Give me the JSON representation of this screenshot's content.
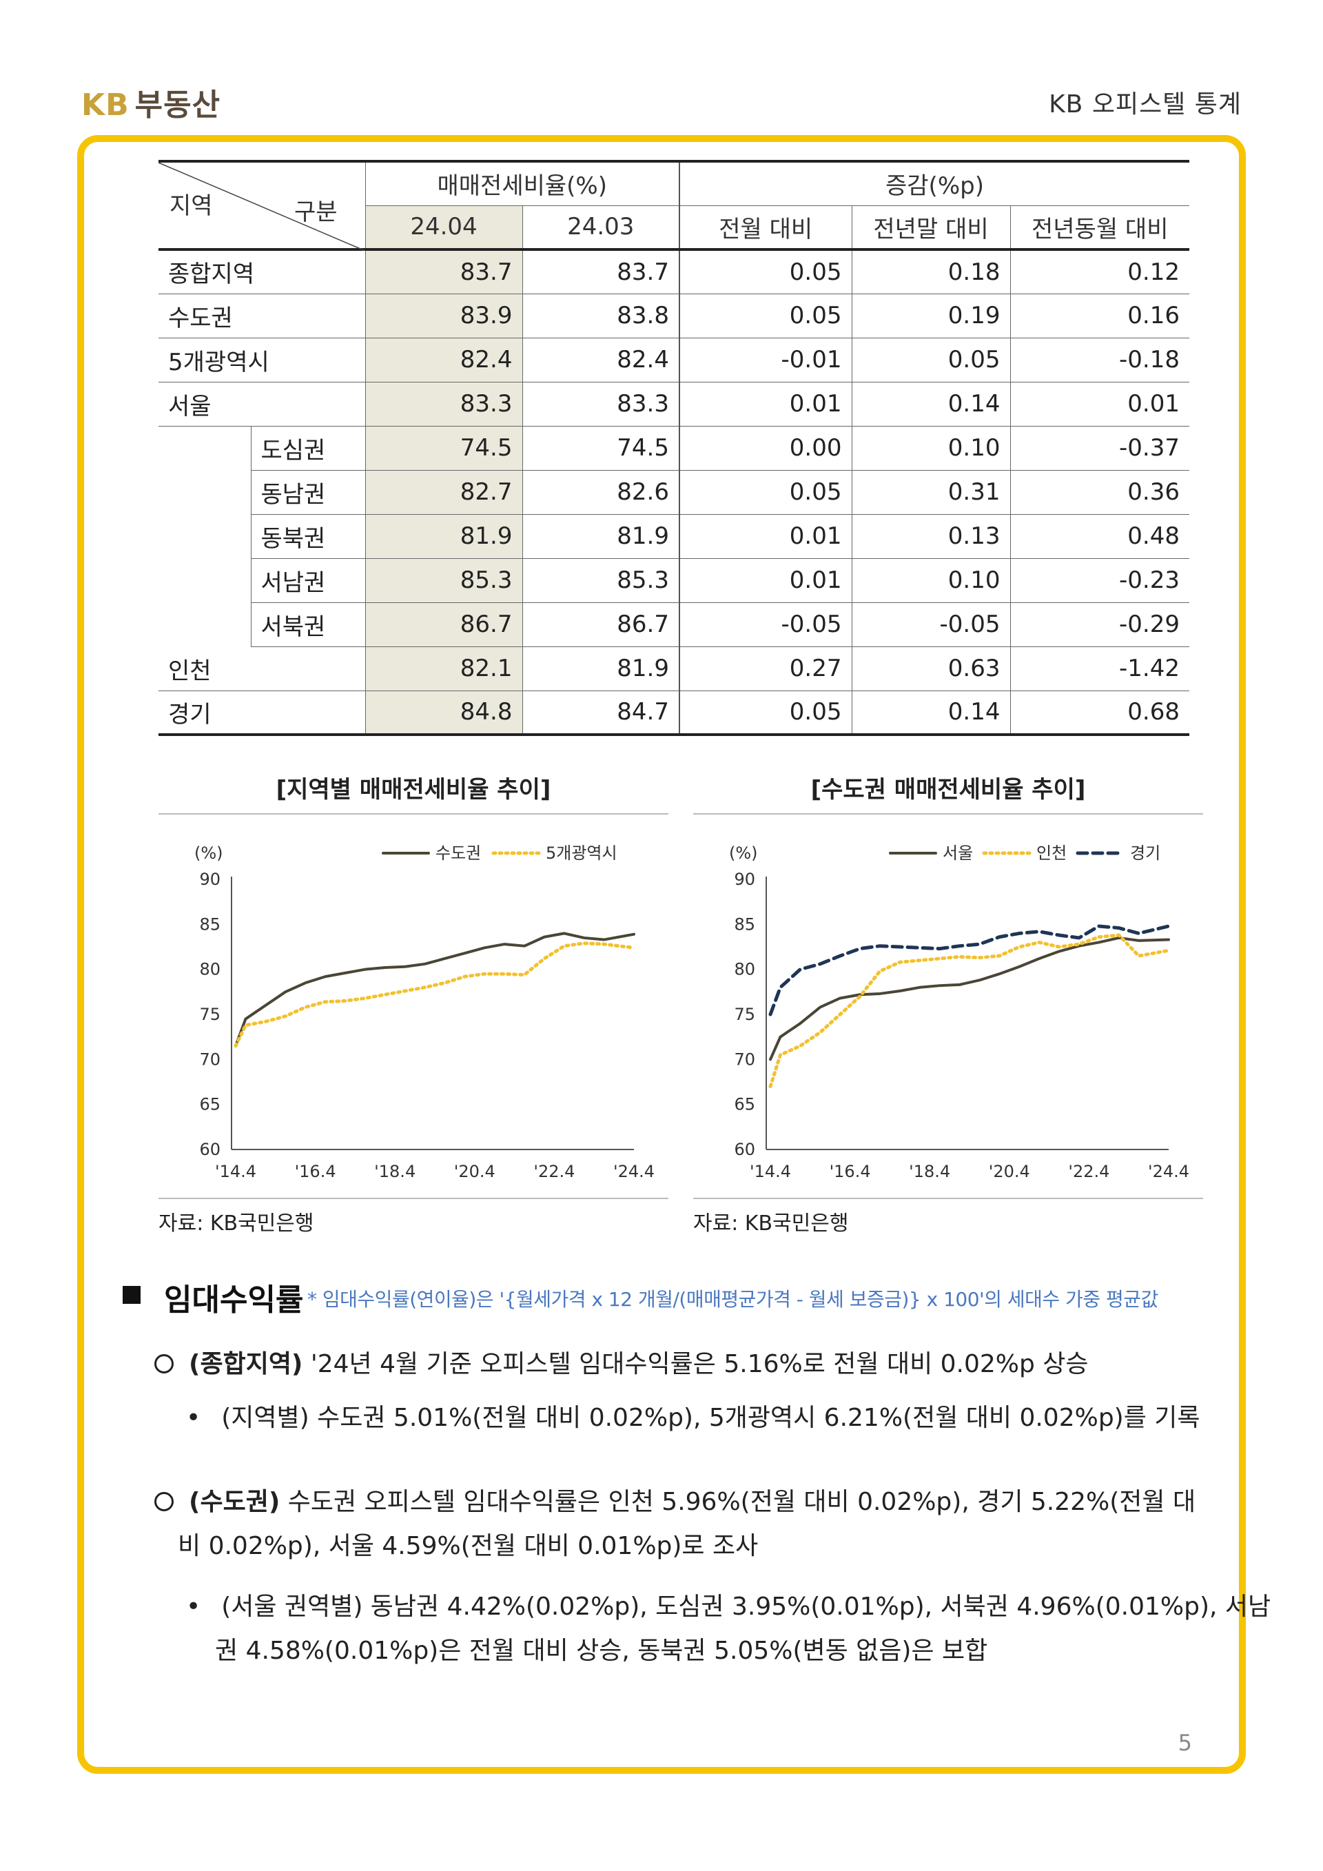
{
  "header": {
    "logo_kb": "KB",
    "logo_rest": "부동산",
    "title": "KB 오피스텔 통계"
  },
  "table": {
    "corner_left": "지역",
    "corner_right": "구분",
    "group1": "매매전세비율(%)",
    "group2": "증감(%p)",
    "subheads": [
      "24.04",
      "24.03",
      "전월 대비",
      "전년말 대비",
      "전년동월 대비"
    ],
    "rows": [
      {
        "region": "종합지역",
        "sub": "",
        "v": [
          "83.7",
          "83.7",
          "0.05",
          "0.18",
          "0.12"
        ]
      },
      {
        "region": "수도권",
        "sub": "",
        "v": [
          "83.9",
          "83.8",
          "0.05",
          "0.19",
          "0.16"
        ]
      },
      {
        "region": "5개광역시",
        "sub": "",
        "v": [
          "82.4",
          "82.4",
          "-0.01",
          "0.05",
          "-0.18"
        ]
      },
      {
        "region": "서울",
        "sub": "",
        "v": [
          "83.3",
          "83.3",
          "0.01",
          "0.14",
          "0.01"
        ]
      },
      {
        "region": "",
        "sub": "도심권",
        "v": [
          "74.5",
          "74.5",
          "0.00",
          "0.10",
          "-0.37"
        ]
      },
      {
        "region": "",
        "sub": "동남권",
        "v": [
          "82.7",
          "82.6",
          "0.05",
          "0.31",
          "0.36"
        ]
      },
      {
        "region": "",
        "sub": "동북권",
        "v": [
          "81.9",
          "81.9",
          "0.01",
          "0.13",
          "0.48"
        ]
      },
      {
        "region": "",
        "sub": "서남권",
        "v": [
          "85.3",
          "85.3",
          "0.01",
          "0.10",
          "-0.23"
        ]
      },
      {
        "region": "",
        "sub": "서북권",
        "v": [
          "86.7",
          "86.7",
          "-0.05",
          "-0.05",
          "-0.29"
        ]
      },
      {
        "region": "인천",
        "sub": "",
        "v": [
          "82.1",
          "81.9",
          "0.27",
          "0.63",
          "-1.42"
        ]
      },
      {
        "region": "경기",
        "sub": "",
        "v": [
          "84.8",
          "84.7",
          "0.05",
          "0.14",
          "0.68"
        ]
      }
    ]
  },
  "chart_data": [
    {
      "type": "line",
      "title": "[지역별 매매전세비율 추이]",
      "ylabel": "(%)",
      "ylim": [
        60,
        90
      ],
      "yticks": [
        "90",
        "85",
        "80",
        "75",
        "70",
        "65",
        "60"
      ],
      "xticks": [
        "'14.4",
        "'16.4",
        "'18.4",
        "'20.4",
        "'22.4",
        "'24.4"
      ],
      "x": [
        2014.25,
        2014.5,
        2015.0,
        2015.5,
        2016.0,
        2016.5,
        2017.0,
        2017.5,
        2018.0,
        2018.5,
        2019.0,
        2019.5,
        2020.0,
        2020.5,
        2021.0,
        2021.5,
        2022.0,
        2022.5,
        2023.0,
        2023.5,
        2024.25
      ],
      "series": [
        {
          "name": "수도권",
          "color": "#4a4636",
          "dash": "solid",
          "values": [
            71.5,
            74.5,
            76.0,
            77.5,
            78.5,
            79.2,
            79.6,
            80.0,
            80.2,
            80.3,
            80.6,
            81.2,
            81.8,
            82.4,
            82.8,
            82.6,
            83.6,
            84.0,
            83.5,
            83.3,
            83.9
          ]
        },
        {
          "name": "5개광역시",
          "color": "#f2c12e",
          "dash": "dotted",
          "values": [
            71.5,
            73.8,
            74.2,
            74.8,
            75.8,
            76.4,
            76.5,
            76.8,
            77.2,
            77.6,
            78.0,
            78.5,
            79.2,
            79.5,
            79.5,
            79.4,
            81.2,
            82.6,
            82.9,
            82.8,
            82.4
          ]
        }
      ],
      "source": "자료: KB국민은행",
      "legend": "top-right"
    },
    {
      "type": "line",
      "title": "[수도권 매매전세비율 추이]",
      "ylabel": "(%)",
      "ylim": [
        60,
        90
      ],
      "yticks": [
        "90",
        "85",
        "80",
        "75",
        "70",
        "65",
        "60"
      ],
      "xticks": [
        "'14.4",
        "'16.4",
        "'18.4",
        "'20.4",
        "'22.4",
        "'24.4"
      ],
      "x": [
        2014.25,
        2014.5,
        2015.0,
        2015.5,
        2016.0,
        2016.5,
        2017.0,
        2017.5,
        2018.0,
        2018.5,
        2019.0,
        2019.5,
        2020.0,
        2020.5,
        2021.0,
        2021.5,
        2022.0,
        2022.5,
        2023.0,
        2023.5,
        2024.25
      ],
      "series": [
        {
          "name": "서울",
          "color": "#4a4636",
          "dash": "solid",
          "values": [
            70.0,
            72.5,
            74.0,
            75.8,
            76.8,
            77.2,
            77.3,
            77.6,
            78.0,
            78.2,
            78.3,
            78.8,
            79.5,
            80.3,
            81.2,
            82.0,
            82.6,
            83.0,
            83.5,
            83.2,
            83.3
          ]
        },
        {
          "name": "인천",
          "color": "#f2c12e",
          "dash": "dotted",
          "values": [
            67.0,
            70.5,
            71.5,
            73.0,
            75.0,
            77.0,
            79.8,
            80.8,
            81.0,
            81.2,
            81.4,
            81.3,
            81.5,
            82.5,
            83.0,
            82.5,
            82.8,
            83.6,
            83.8,
            81.5,
            82.1
          ]
        },
        {
          "name": "경기",
          "color": "#1f3556",
          "dash": "dashed",
          "values": [
            75.0,
            78.0,
            80.0,
            80.6,
            81.5,
            82.3,
            82.6,
            82.5,
            82.4,
            82.3,
            82.6,
            82.8,
            83.6,
            84.0,
            84.2,
            83.8,
            83.5,
            84.8,
            84.6,
            84.0,
            84.8
          ]
        }
      ],
      "source": "자료: KB국민은행",
      "legend": "top-right"
    }
  ],
  "section": {
    "title": "임대수익률",
    "note": "* 임대수익률(연이율)은 '{월세가격 x 12 개월/(매매평균가격 - 월세 보증금)} x 100'의 세대수 가중 평균값",
    "p1_bold": "(종합지역)",
    "p1_text": " '24년 4월 기준 오피스텔 임대수익률은 5.16%로 전월 대비 0.02%p 상승",
    "p1_sub": "(지역별) 수도권 5.01%(전월 대비 0.02%p), 5개광역시 6.21%(전월 대비 0.02%p)를 기록",
    "p2_bold": "(수도권)",
    "p2_text1": " 수도권 오피스텔 임대수익률은 인천 5.96%(전월 대비 0.02%p), 경기 5.22%(전월 대",
    "p2_text2": "비 0.02%p), 서울 4.59%(전월 대비 0.01%p)로 조사",
    "p2_sub1": "(서울 권역별) 동남권 4.42%(0.02%p), 도심권 3.95%(0.01%p), 서북권 4.96%(0.01%p), 서남",
    "p2_sub2": "권 4.58%(0.01%p)은 전월 대비 상승, 동북권 5.05%(변동 없음)은 보합"
  },
  "page_number": "5"
}
